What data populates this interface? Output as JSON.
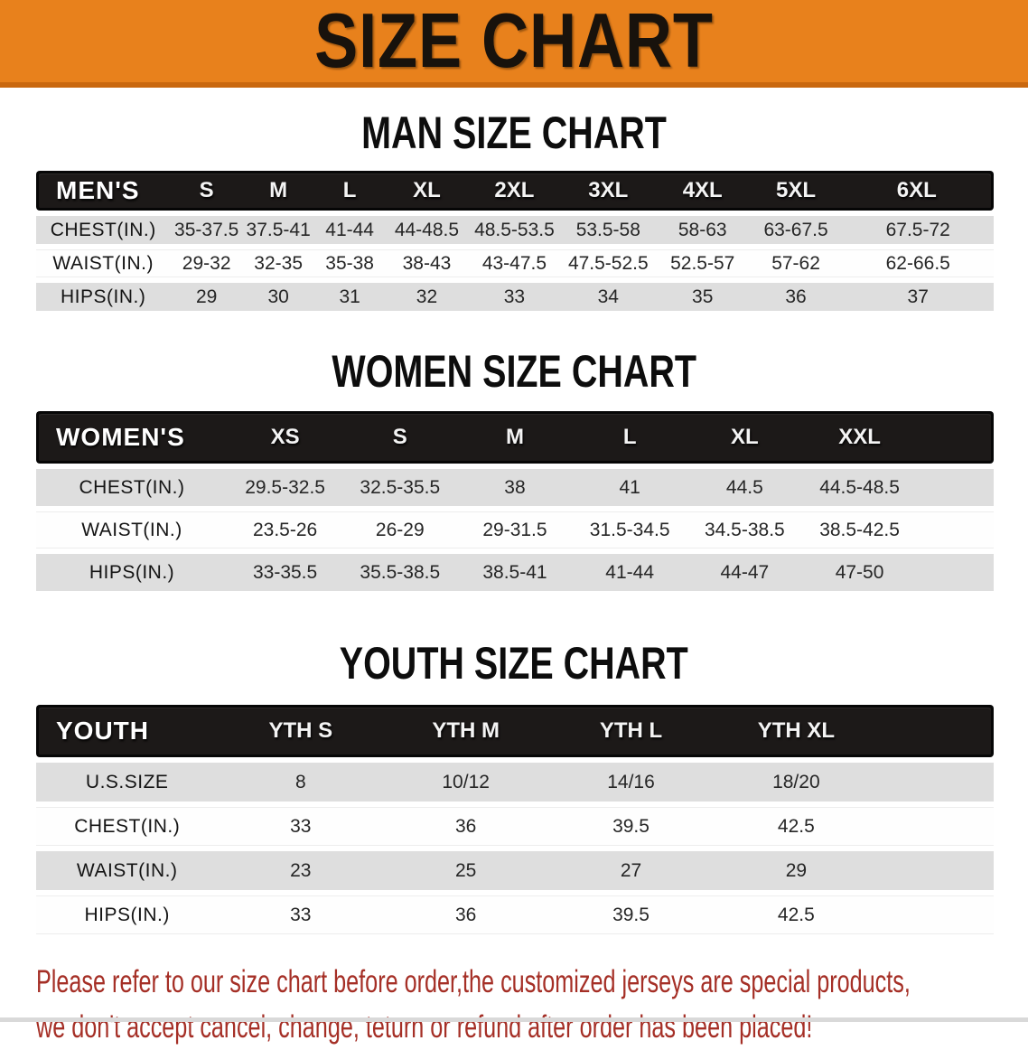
{
  "banner": {
    "title": "SIZE CHART",
    "background": "#E8811C",
    "title_color": "#18120C"
  },
  "colors": {
    "header_bar": "#1C1918",
    "row_shade": "#DEDEDE",
    "disclaimer_red": "#A52F26",
    "banner_edge": "#C9680F"
  },
  "sections": [
    {
      "id": "men",
      "heading": "MAN SIZE CHART",
      "group_label": "MEN'S",
      "columns": [
        "S",
        "M",
        "L",
        "XL",
        "2XL",
        "3XL",
        "4XL",
        "5XL",
        "6XL"
      ],
      "rows": [
        {
          "label": "CHEST(IN.)",
          "values": [
            "35-37.5",
            "37.5-41",
            "41-44",
            "44-48.5",
            "48.5-53.5",
            "53.5-58",
            "58-63",
            "63-67.5",
            "67.5-72"
          ]
        },
        {
          "label": "WAIST(IN.)",
          "values": [
            "29-32",
            "32-35",
            "35-38",
            "38-43",
            "43-47.5",
            "47.5-52.5",
            "52.5-57",
            "57-62",
            "62-66.5"
          ]
        },
        {
          "label": "HIPS(IN.)",
          "values": [
            "29",
            "30",
            "31",
            "32",
            "33",
            "34",
            "35",
            "36",
            "37"
          ]
        }
      ]
    },
    {
      "id": "women",
      "heading": "WOMEN SIZE CHART",
      "group_label": "WOMEN'S",
      "columns": [
        "XS",
        "S",
        "M",
        "L",
        "XL",
        "XXL"
      ],
      "rows": [
        {
          "label": "CHEST(IN.)",
          "values": [
            "29.5-32.5",
            "32.5-35.5",
            "38",
            "41",
            "44.5",
            "44.5-48.5"
          ]
        },
        {
          "label": "WAIST(IN.)",
          "values": [
            "23.5-26",
            "26-29",
            "29-31.5",
            "31.5-34.5",
            "34.5-38.5",
            "38.5-42.5"
          ]
        },
        {
          "label": "HIPS(IN.)",
          "values": [
            "33-35.5",
            "35.5-38.5",
            "38.5-41",
            "41-44",
            "44-47",
            "47-50"
          ]
        }
      ]
    },
    {
      "id": "youth",
      "heading": "YOUTH SIZE CHART",
      "group_label": "YOUTH",
      "columns": [
        "YTH S",
        "YTH M",
        "YTH L",
        "YTH XL"
      ],
      "rows": [
        {
          "label": "U.S.SIZE",
          "values": [
            "8",
            "10/12",
            "14/16",
            "18/20"
          ]
        },
        {
          "label": "CHEST(IN.)",
          "values": [
            "33",
            "36",
            "39.5",
            "42.5"
          ]
        },
        {
          "label": "WAIST(IN.)",
          "values": [
            "23",
            "25",
            "27",
            "29"
          ]
        },
        {
          "label": "HIPS(IN.)",
          "values": [
            "33",
            "36",
            "39.5",
            "42.5"
          ]
        }
      ]
    }
  ],
  "footer": {
    "lines": [
      "Please refer to our size chart before order,the customized jerseys are special products,",
      "we don't accept cancel, change, teturn or refund after order has been placed!"
    ]
  }
}
